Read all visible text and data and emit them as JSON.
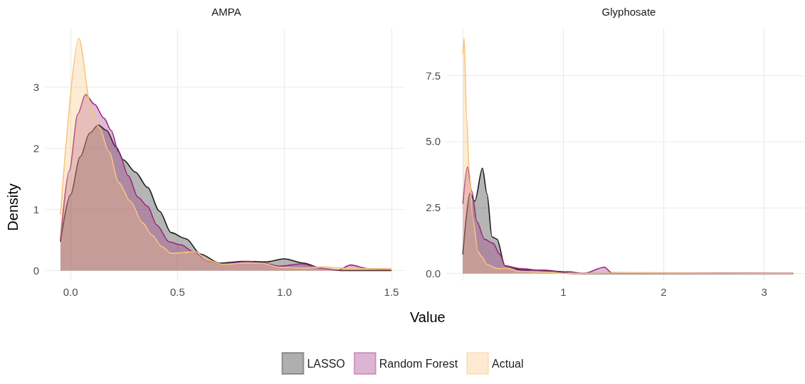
{
  "chart_data": [
    {
      "type": "area",
      "title": "AMPA",
      "xlabel": "Value",
      "ylabel": "Density",
      "legend": "bottom",
      "grid": true,
      "marker": "none",
      "xlim": [
        -0.12,
        1.56
      ],
      "ylim": [
        -0.17,
        3.96
      ],
      "xticks": [
        {
          "value": 0,
          "label": "0.0"
        },
        {
          "value": 0.5,
          "label": "0.5"
        },
        {
          "value": 1,
          "label": "1.0"
        },
        {
          "value": 1.5,
          "label": "1.5"
        }
      ],
      "yticks": [
        0,
        1,
        2,
        3
      ],
      "series": [
        {
          "name": "LASSO",
          "color": "#1a1a1a",
          "x": [
            -0.047,
            0,
            0.045,
            0.09,
            0.129,
            0.169,
            0.213,
            0.247,
            0.303,
            0.36,
            0.416,
            0.47,
            0.54,
            0.607,
            0.697,
            0.81,
            0.91,
            1.0,
            1.09,
            1.17,
            1.26,
            1.5
          ],
          "values": [
            0.47,
            1.24,
            1.86,
            2.25,
            2.38,
            2.29,
            2.02,
            1.81,
            1.61,
            1.36,
            0.97,
            0.62,
            0.52,
            0.27,
            0.12,
            0.15,
            0.14,
            0.19,
            0.12,
            0.04,
            0,
            0
          ]
        },
        {
          "name": "Random Forest",
          "color": "#9c2a7f",
          "x": [
            -0.047,
            -0.006,
            0.034,
            0.07,
            0.112,
            0.157,
            0.19,
            0.225,
            0.27,
            0.315,
            0.36,
            0.404,
            0.46,
            0.517,
            0.573,
            0.64,
            0.71,
            0.83,
            0.9,
            0.98,
            1.08,
            1.18,
            1.25,
            1.31,
            1.39,
            1.5
          ],
          "values": [
            0.5,
            1.63,
            2.56,
            2.88,
            2.72,
            2.49,
            2.29,
            1.94,
            1.55,
            1.2,
            1.05,
            0.74,
            0.47,
            0.42,
            0.31,
            0.16,
            0.1,
            0.15,
            0.12,
            0.07,
            0.11,
            0.03,
            0.01,
            0.09,
            0.03,
            0.01
          ]
        },
        {
          "name": "Actual",
          "color": "#f9c47c",
          "x": [
            -0.047,
            0.039,
            0.096,
            0.135,
            0.18,
            0.225,
            0.28,
            0.337,
            0.38,
            0.427,
            0.47,
            0.517,
            0.584,
            0.64,
            0.71,
            0.81,
            0.89,
            0.98,
            1.09,
            1.18,
            1.31,
            1.5
          ],
          "values": [
            0.91,
            3.8,
            2.68,
            2.33,
            1.94,
            1.44,
            1.13,
            0.78,
            0.58,
            0.39,
            0.28,
            0.29,
            0.31,
            0.17,
            0.1,
            0.12,
            0.12,
            0.05,
            0.04,
            0.06,
            0.03,
            0.03
          ]
        }
      ]
    },
    {
      "type": "area",
      "title": "Glyphosate",
      "grid": true,
      "marker": "none",
      "xlim": [
        -0.165,
        3.4
      ],
      "ylim": [
        -0.28,
        9.28
      ],
      "xticks": [
        {
          "value": 0,
          "label": null
        },
        1,
        2,
        3
      ],
      "yticks": [
        {
          "value": 0,
          "label": "0.0"
        },
        {
          "value": 2.5,
          "label": "2.5"
        },
        {
          "value": 5,
          "label": "5.0"
        },
        {
          "value": 7.5,
          "label": "7.5"
        }
      ],
      "series": [
        {
          "color": "#1a1a1a",
          "x": [
            0,
            0.071,
            0.12,
            0.195,
            0.24,
            0.29,
            0.34,
            0.42,
            0.57,
            0.82,
            1.08,
            3.29
          ],
          "values": [
            0.72,
            3.03,
            2.74,
            3.99,
            3.03,
            1.39,
            1.3,
            0.29,
            0.14,
            0.12,
            0,
            0
          ]
        },
        {
          "color": "#9c2a7f",
          "x": [
            0,
            0.046,
            0.089,
            0.14,
            0.215,
            0.3,
            0.37,
            0.42,
            0.57,
            0.82,
            1.05,
            1.2,
            1.41,
            1.48,
            3.29
          ],
          "values": [
            2.64,
            4.04,
            3.12,
            1.97,
            1.3,
            1.15,
            0.72,
            0.29,
            0.19,
            0.1,
            0.07,
            0,
            0.24,
            0.03,
            0
          ]
        },
        {
          "color": "#f9c47c",
          "x": [
            0,
            0.013,
            0.038,
            0.063,
            0.1,
            0.15,
            0.19,
            0.24,
            0.34,
            0.44,
            0.57,
            0.82,
            1.08,
            1.58,
            3.29
          ],
          "values": [
            8.3,
            8.9,
            5.9,
            3.9,
            2.07,
            0.82,
            0.63,
            0.34,
            0.19,
            0.19,
            0.07,
            0.05,
            0,
            0.02,
            0
          ]
        }
      ]
    }
  ]
}
